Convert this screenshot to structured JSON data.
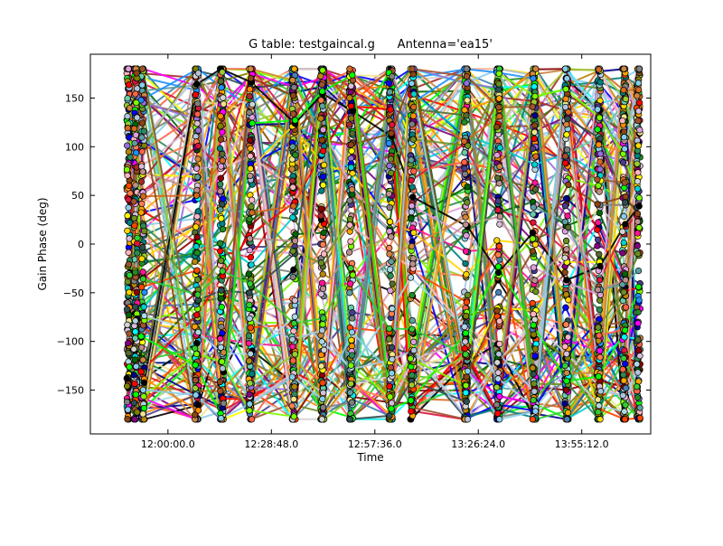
{
  "chart_data": {
    "type": "line",
    "title": "G table: testgaincal.g      Antenna='ea15'",
    "xlabel": "Time",
    "ylabel": "Gain Phase (deg)",
    "xlim": [
      "11:38:24",
      "14:14:24"
    ],
    "ylim": [
      -195,
      195
    ],
    "x_ticks": [
      "12:00:00.0",
      "12:28:48.0",
      "12:57:36.0",
      "13:26:24.0",
      "13:55:12.0"
    ],
    "y_ticks": [
      150,
      100,
      50,
      0,
      -50,
      -100,
      -150
    ],
    "grid": false,
    "legend": "none",
    "markers": "filled circles with black edge",
    "scan_times": [
      "11:49:00",
      "11:51:00",
      "11:53:00",
      "12:08:00",
      "12:15:00",
      "12:23:00",
      "12:35:00",
      "12:43:00",
      "12:51:00",
      "13:02:00",
      "13:08:00",
      "13:23:00",
      "13:32:00",
      "13:42:00",
      "13:51:00",
      "14:00:00",
      "14:07:00",
      "14:11:00"
    ],
    "value_range": [
      -180,
      180
    ],
    "series_count": 160,
    "palette": [
      "#00ff00",
      "#32cd32",
      "#7cfc00",
      "#87ceeb",
      "#66cdaa",
      "#8b0000",
      "#a52a2a",
      "#ff1493",
      "#ff00ff",
      "#800080",
      "#9370db",
      "#483d8b",
      "#00008b",
      "#0000ff",
      "#1e90ff",
      "#4682b4",
      "#00ced1",
      "#00ffff",
      "#008080",
      "#006400",
      "#228b22",
      "#2e8b57",
      "#556b2f",
      "#808000",
      "#b8860b",
      "#ffd700",
      "#ffff00",
      "#f0e68c",
      "#ffa500",
      "#ff8c00",
      "#ff7f50",
      "#ff6347",
      "#ff4500",
      "#ff0000",
      "#dc143c",
      "#ffb6c1",
      "#d8bfd8",
      "#dda0dd",
      "#d3d3d3",
      "#808080",
      "#2f4f4f",
      "#000000",
      "#b0c4de",
      "#add8e6",
      "#5f9ea0",
      "#9acd32",
      "#6b8e23",
      "#bc8f8f",
      "#cd853f",
      "#d2691e",
      "#8b4513",
      "#a0522d"
    ]
  }
}
